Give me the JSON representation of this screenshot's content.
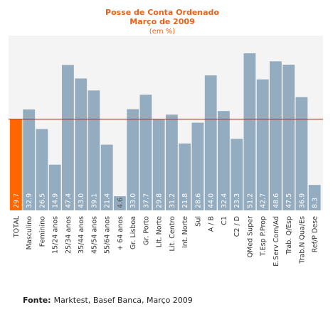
{
  "chart_data": {
    "type": "bar",
    "title": "Posse de Conta Ordenado",
    "subtitle": "Março de 2009",
    "unit": "(em %)",
    "categories": [
      "TOTAL",
      "Masculino",
      "Feminino",
      "15/24 anos",
      "25/34 anos",
      "35/44 anos",
      "45/54 anos",
      "55/64 anos",
      "+ 64 anos",
      "Gr. Lisboa",
      "Gr. Porto",
      "Lit. Norte",
      "Lit. Centro",
      "Int. Norte",
      "Sul",
      "A / B",
      "C1",
      "C2 / D",
      "QMed Super",
      "T.Esp P.Prop",
      "E.Serv Com/Ad",
      "Trab. Q/Esp",
      "Trab.N Qua/Es",
      "Ref/P Dese"
    ],
    "values": [
      29.7,
      32.9,
      26.5,
      14.9,
      47.4,
      43.0,
      39.1,
      21.4,
      4.6,
      33.0,
      37.7,
      29.8,
      31.2,
      21.8,
      28.6,
      44.0,
      32.4,
      23.3,
      51.2,
      42.7,
      48.6,
      47.5,
      36.9,
      8.3
    ],
    "value_labels": [
      "29.7",
      "32.9",
      "26.5",
      "14.9",
      "47.4",
      "43.0",
      "39.1",
      "21.4",
      "4.6",
      "33.0",
      "37.7",
      "29.8",
      "31.2",
      "21.8",
      "28.6",
      "44.0",
      "32.4",
      "23.3",
      "51.2",
      "42.7",
      "48.6",
      "47.5",
      "36.9",
      "8.3"
    ],
    "ylim": [
      0,
      57
    ],
    "reference_line": 29.7,
    "grid": false,
    "colors": {
      "highlight": "#ff6600",
      "bar": "#93acbf",
      "reference_line": "#cc3300",
      "plot_background": "#f4f4f4",
      "title": "#e8621a"
    }
  },
  "footer": {
    "label": "Fonte:",
    "text": "Marktest, Basef Banca, Março 2009"
  }
}
